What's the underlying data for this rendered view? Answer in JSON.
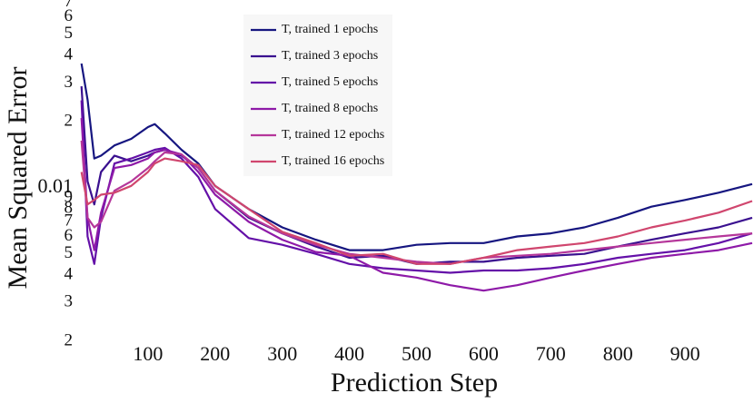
{
  "chart_data": {
    "type": "line",
    "x_label": "Prediction Step",
    "y_label": "Mean Squared Error",
    "log_y": true,
    "grid": false,
    "legend_position": "upper center",
    "xlim": [
      0,
      1000
    ],
    "ylim": [
      0.0018,
      0.07
    ],
    "xticks": [
      100,
      200,
      300,
      400,
      500,
      600,
      700,
      800,
      900
    ],
    "yticks": [
      {
        "value": 0.07,
        "label": "7"
      },
      {
        "value": 0.06,
        "label": "6"
      },
      {
        "value": 0.05,
        "label": "5"
      },
      {
        "value": 0.04,
        "label": "4"
      },
      {
        "value": 0.03,
        "label": "3"
      },
      {
        "value": 0.02,
        "label": "2"
      },
      0.01,
      {
        "value": 0.009,
        "label": "9"
      },
      {
        "value": 0.008,
        "label": "8"
      },
      {
        "value": 0.007,
        "label": "7"
      },
      {
        "value": 0.006,
        "label": "6"
      },
      {
        "value": 0.005,
        "label": "5"
      },
      {
        "value": 0.004,
        "label": "4"
      },
      {
        "value": 0.003,
        "label": "3"
      },
      {
        "value": 0.002,
        "label": "2"
      }
    ],
    "x": [
      1,
      10,
      20,
      30,
      50,
      75,
      100,
      110,
      125,
      150,
      175,
      200,
      250,
      300,
      350,
      400,
      450,
      500,
      550,
      600,
      650,
      700,
      750,
      800,
      850,
      900,
      950,
      1000
    ],
    "series": [
      {
        "name": "T, trained 1 epochs",
        "color": "#161680",
        "values": [
          0.0368,
          0.0252,
          0.0136,
          0.014,
          0.0156,
          0.0167,
          0.0189,
          0.0195,
          0.0177,
          0.0149,
          0.0129,
          0.0102,
          0.008,
          0.0066,
          0.0058,
          0.0052,
          0.0052,
          0.0055,
          0.0056,
          0.0056,
          0.006,
          0.0062,
          0.0066,
          0.0073,
          0.0082,
          0.0088,
          0.0095,
          0.0104
        ]
      },
      {
        "name": "T, trained 3 epochs",
        "color": "#3a108f",
        "values": [
          0.029,
          0.0107,
          0.0084,
          0.0118,
          0.014,
          0.0132,
          0.014,
          0.0145,
          0.0149,
          0.014,
          0.0123,
          0.0097,
          0.0073,
          0.0062,
          0.0054,
          0.0048,
          0.0049,
          0.0045,
          0.0046,
          0.0046,
          0.0048,
          0.0049,
          0.005,
          0.0054,
          0.0058,
          0.0062,
          0.0066,
          0.0073
        ]
      },
      {
        "name": "T, trained 5 epochs",
        "color": "#6410a8",
        "values": [
          0.025,
          0.006,
          0.0045,
          0.0073,
          0.0129,
          0.0136,
          0.0145,
          0.0149,
          0.0152,
          0.0136,
          0.0112,
          0.008,
          0.0059,
          0.0055,
          0.005,
          0.0045,
          0.0043,
          0.0042,
          0.0041,
          0.0042,
          0.0042,
          0.0043,
          0.0045,
          0.0048,
          0.005,
          0.0052,
          0.0056,
          0.0062
        ]
      },
      {
        "name": "T, trained 8 epochs",
        "color": "#8e1aa8",
        "values": [
          0.0208,
          0.0073,
          0.0052,
          0.0077,
          0.0123,
          0.0127,
          0.0136,
          0.0145,
          0.0149,
          0.0142,
          0.0118,
          0.0093,
          0.007,
          0.0058,
          0.0051,
          0.0049,
          0.0041,
          0.0039,
          0.0036,
          0.0034,
          0.0036,
          0.0039,
          0.0042,
          0.0045,
          0.0048,
          0.005,
          0.0052,
          0.0056
        ]
      },
      {
        "name": "T, trained 12 epochs",
        "color": "#b5369a",
        "values": [
          0.0164,
          0.0073,
          0.0066,
          0.007,
          0.0097,
          0.0107,
          0.0123,
          0.0132,
          0.0145,
          0.0142,
          0.0123,
          0.0097,
          0.0074,
          0.0062,
          0.0055,
          0.005,
          0.0048,
          0.0046,
          0.0045,
          0.0048,
          0.0049,
          0.005,
          0.0052,
          0.0054,
          0.0056,
          0.0058,
          0.006,
          0.0062
        ]
      },
      {
        "name": "T, trained 16 epochs",
        "color": "#d0466e",
        "values": [
          0.0118,
          0.0084,
          0.0088,
          0.0093,
          0.0095,
          0.0102,
          0.0118,
          0.0129,
          0.0136,
          0.0132,
          0.0127,
          0.0102,
          0.008,
          0.0063,
          0.0056,
          0.0049,
          0.005,
          0.0045,
          0.0045,
          0.0048,
          0.0052,
          0.0054,
          0.0056,
          0.006,
          0.0066,
          0.0071,
          0.0077,
          0.0087
        ]
      }
    ]
  }
}
